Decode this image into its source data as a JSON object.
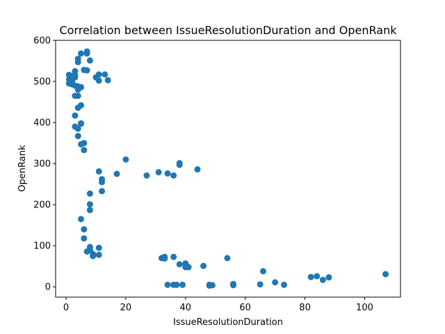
{
  "chart_data": {
    "type": "scatter",
    "title": "Correlation between IssueResolutionDuration and OpenRank",
    "xlabel": "IssueResolutionDuration",
    "ylabel": "OpenRank",
    "xlim": [
      -3.5,
      112
    ],
    "ylim": [
      -25,
      600
    ],
    "xticks": [
      0,
      20,
      40,
      60,
      80,
      100
    ],
    "yticks": [
      0,
      100,
      200,
      300,
      400,
      500,
      600
    ],
    "grid": false,
    "color": "#1f77b4",
    "points": [
      [
        7,
        573
      ],
      [
        7,
        568
      ],
      [
        5,
        568
      ],
      [
        8,
        551
      ],
      [
        4,
        555
      ],
      [
        4,
        547
      ],
      [
        6,
        528
      ],
      [
        7,
        527
      ],
      [
        11,
        517
      ],
      [
        13,
        517
      ],
      [
        10,
        510
      ],
      [
        11,
        502
      ],
      [
        14,
        503
      ],
      [
        1,
        516
      ],
      [
        2,
        513
      ],
      [
        3,
        510
      ],
      [
        1,
        505
      ],
      [
        2,
        500
      ],
      [
        1,
        495
      ],
      [
        2,
        493
      ],
      [
        3,
        490
      ],
      [
        4,
        488
      ],
      [
        5,
        486
      ],
      [
        3,
        525
      ],
      [
        3,
        515
      ],
      [
        4,
        480
      ],
      [
        4,
        465
      ],
      [
        3,
        465
      ],
      [
        5,
        442
      ],
      [
        4,
        436
      ],
      [
        3,
        417
      ],
      [
        5,
        398
      ],
      [
        5,
        397
      ],
      [
        3,
        390
      ],
      [
        4,
        385
      ],
      [
        4,
        367
      ],
      [
        6,
        350
      ],
      [
        5,
        347
      ],
      [
        6,
        333
      ],
      [
        20,
        310
      ],
      [
        11,
        281
      ],
      [
        12,
        262
      ],
      [
        12,
        255
      ],
      [
        12,
        233
      ],
      [
        17,
        275
      ],
      [
        27,
        271
      ],
      [
        31,
        279
      ],
      [
        34,
        276
      ],
      [
        36,
        271
      ],
      [
        38,
        301
      ],
      [
        38,
        297
      ],
      [
        44,
        286
      ],
      [
        8,
        227
      ],
      [
        8,
        201
      ],
      [
        8,
        187
      ],
      [
        5,
        165
      ],
      [
        6,
        140
      ],
      [
        6,
        118
      ],
      [
        7,
        86
      ],
      [
        8,
        90
      ],
      [
        8,
        97
      ],
      [
        9,
        80
      ],
      [
        9,
        75
      ],
      [
        11,
        95
      ],
      [
        11,
        78
      ],
      [
        32,
        70
      ],
      [
        33,
        73
      ],
      [
        33,
        69
      ],
      [
        36,
        73
      ],
      [
        38,
        55
      ],
      [
        40,
        48
      ],
      [
        41,
        48
      ],
      [
        40,
        57
      ],
      [
        46,
        51
      ],
      [
        54,
        70
      ],
      [
        34,
        5
      ],
      [
        36,
        5
      ],
      [
        37,
        5
      ],
      [
        39,
        5
      ],
      [
        48,
        5
      ],
      [
        49,
        4
      ],
      [
        48,
        3
      ],
      [
        56,
        7
      ],
      [
        56,
        4
      ],
      [
        65,
        6
      ],
      [
        66,
        38
      ],
      [
        70,
        11
      ],
      [
        73,
        5
      ],
      [
        82,
        24
      ],
      [
        84,
        26
      ],
      [
        86,
        17
      ],
      [
        88,
        23
      ],
      [
        107,
        31
      ]
    ]
  }
}
